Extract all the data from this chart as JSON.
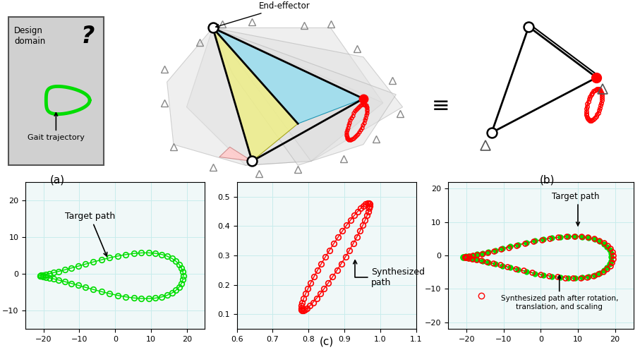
{
  "green_color": "#00dd00",
  "red_color": "#ff0000",
  "label_a": "(a)",
  "label_b": "(b)",
  "label_c": "(c)",
  "target_path_label": "Target path",
  "synthesized_path_label": "Synthesized\npath",
  "combined_target_label": "Target path",
  "combined_synth_label": "Synthesized path after rotation,\ntranslation, and scaling",
  "end_effector_label": "End-effector"
}
